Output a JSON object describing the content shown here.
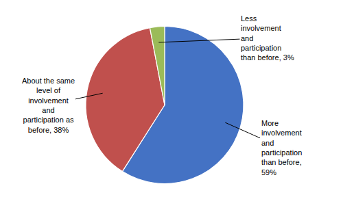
{
  "chart_data": {
    "type": "pie",
    "values": [
      59,
      38,
      3
    ],
    "colors": [
      "#4472C4",
      "#C0504D",
      "#9BBB59"
    ],
    "annotations": [
      "More\ninvolvement\nand\nparticipation\nthan before,\n59%",
      "About the same\nlevel of\ninvolvement\nand\nparticipation as\nbefore, 38%",
      "Less\ninvolvement\nand\nparticipation\nthan before, 3%"
    ]
  }
}
